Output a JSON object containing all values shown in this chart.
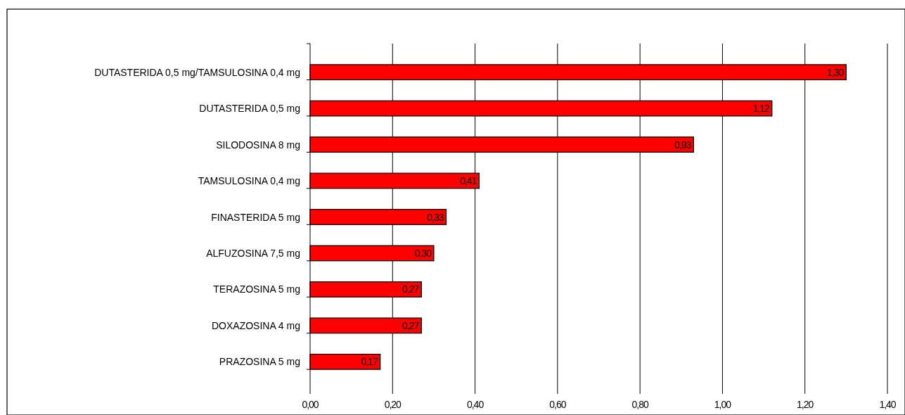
{
  "chart_data": {
    "type": "bar",
    "orientation": "horizontal",
    "categories": [
      "DUTASTERIDA 0,5 mg/TAMSULOSINA 0,4 mg",
      "DUTASTERIDA 0,5 mg",
      "SILODOSINA 8 mg",
      "TAMSULOSINA 0,4 mg",
      "FINASTERIDA 5 mg",
      "ALFUZOSINA 7,5 mg",
      "TERAZOSINA 5 mg",
      "DOXAZOSINA 4 mg",
      "PRAZOSINA 5 mg"
    ],
    "values": [
      1.3,
      1.12,
      0.93,
      0.41,
      0.33,
      0.3,
      0.27,
      0.27,
      0.17
    ],
    "value_labels": [
      "1,30",
      "1,12",
      "0,93",
      "0,41",
      "0,33",
      "0,30",
      "0,27",
      "0,27",
      "0,17"
    ],
    "color": "#ff0000",
    "xlim": [
      0,
      1.4
    ],
    "xticks": [
      {
        "value": 0,
        "label": "0,00"
      },
      {
        "value": 0.2,
        "label": "0,20"
      },
      {
        "value": 0.4,
        "label": "0,40"
      },
      {
        "value": 0.6,
        "label": "0,60"
      },
      {
        "value": 0.8,
        "label": "0,80"
      },
      {
        "value": 1.0,
        "label": "1,00"
      },
      {
        "value": 1.2,
        "label": "1,20"
      },
      {
        "value": 1.4,
        "label": "1,40"
      }
    ],
    "grid": "x"
  }
}
